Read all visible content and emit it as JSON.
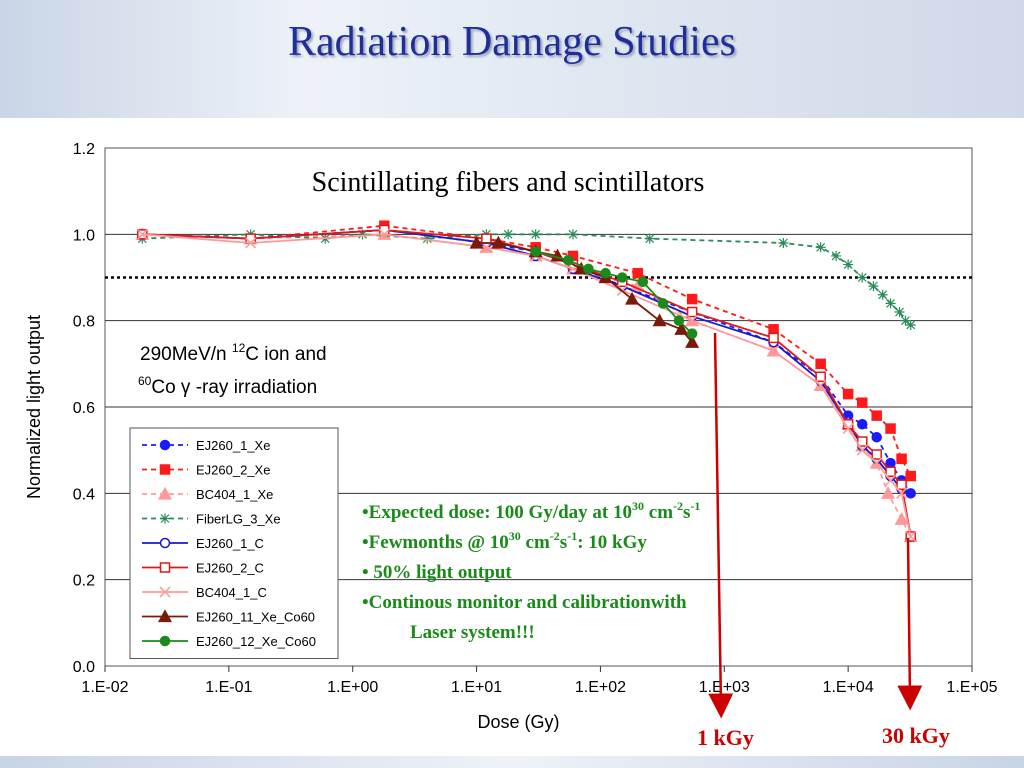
{
  "slide": {
    "title": "Radiation Damage Studies"
  },
  "annotations": {
    "arrow_1": "1 kGy",
    "arrow_2": "30 kGy",
    "bullets": [
      {
        "text": "•Expected dose: 100 Gy/day at 10",
        "sup1": "30",
        "mid": " cm",
        "sup2": "-2",
        "mid2": "s",
        "sup3": "-1"
      },
      {
        "text": "•Fewmonths @ 10",
        "sup1": "30",
        "mid": " cm",
        "sup2": "-2",
        "mid2": "s",
        "sup3": "-1",
        "tail": ": 10 kGy"
      },
      {
        "text": "• 50% light output"
      },
      {
        "text": "•Continous monitor and calibrationwith"
      },
      {
        "text": "Laser system!!!"
      }
    ]
  },
  "colors": {
    "title": "#1f2f9a",
    "bullet_text": "#1a8a1a",
    "arrow": "#cc0000"
  },
  "chart_data": {
    "type": "line",
    "title": "Scintillating fibers and scintillators",
    "note_line1": "290MeV/n ",
    "note_sup1": "12",
    "note_line1b": "C ion and",
    "note_sup2": "60",
    "note_line2": "Co  γ -ray irradiation",
    "xlabel": "Dose (Gy)",
    "ylabel": "Normalized light output",
    "xscale": "log",
    "xlim": [
      0.01,
      100000
    ],
    "ylim": [
      0,
      1.2
    ],
    "xticks": [
      "1.E-02",
      "1.E-01",
      "1.E+00",
      "1.E+01",
      "1.E+02",
      "1.E+03",
      "1.E+04",
      "1.E+05"
    ],
    "yticks": [
      "0.0",
      "0.2",
      "0.4",
      "0.6",
      "0.8",
      "1.0",
      "1.2"
    ],
    "grid": true,
    "reference_line": 0.9,
    "legend_position": "left",
    "series": [
      {
        "name": "EJ260_1_Xe",
        "color": "#1a1aff",
        "dash": "dashed",
        "marker": "circle",
        "fill": true,
        "points": [
          [
            0.02,
            1.0
          ],
          [
            0.15,
            0.99
          ],
          [
            1.8,
            1.01
          ],
          [
            12,
            0.98
          ],
          [
            30,
            0.96
          ],
          [
            60,
            0.93
          ],
          [
            150,
            0.88
          ],
          [
            550,
            0.82
          ],
          [
            2500,
            0.75
          ],
          [
            6000,
            0.67
          ],
          [
            10000,
            0.58
          ],
          [
            13000,
            0.56
          ],
          [
            17000,
            0.53
          ],
          [
            22000,
            0.47
          ],
          [
            27000,
            0.43
          ],
          [
            32000,
            0.4
          ]
        ]
      },
      {
        "name": "EJ260_2_Xe",
        "color": "#ff1a1a",
        "dash": "dashed",
        "marker": "square",
        "fill": true,
        "points": [
          [
            0.02,
            1.0
          ],
          [
            0.15,
            0.99
          ],
          [
            1.8,
            1.02
          ],
          [
            12,
            0.99
          ],
          [
            30,
            0.97
          ],
          [
            60,
            0.95
          ],
          [
            200,
            0.91
          ],
          [
            550,
            0.85
          ],
          [
            2500,
            0.78
          ],
          [
            6000,
            0.7
          ],
          [
            10000,
            0.63
          ],
          [
            13000,
            0.61
          ],
          [
            17000,
            0.58
          ],
          [
            22000,
            0.55
          ],
          [
            27000,
            0.48
          ],
          [
            32000,
            0.44
          ]
        ]
      },
      {
        "name": "BC404_1_Xe",
        "color": "#ff9999",
        "dash": "dashed",
        "marker": "triangle",
        "fill": true,
        "points": [
          [
            0.02,
            1.0
          ],
          [
            0.15,
            0.99
          ],
          [
            1.8,
            1.0
          ],
          [
            12,
            0.97
          ],
          [
            30,
            0.95
          ],
          [
            60,
            0.92
          ],
          [
            200,
            0.88
          ],
          [
            550,
            0.8
          ],
          [
            2500,
            0.73
          ],
          [
            6000,
            0.65
          ],
          [
            10000,
            0.56
          ],
          [
            13000,
            0.51
          ],
          [
            17000,
            0.47
          ],
          [
            21000,
            0.4
          ],
          [
            27000,
            0.34
          ],
          [
            32000,
            0.3
          ]
        ]
      },
      {
        "name": "FiberLG_3_Xe",
        "color": "#2a8a5a",
        "dash": "dashed",
        "marker": "star",
        "fill": false,
        "points": [
          [
            0.02,
            0.99
          ],
          [
            0.15,
            1.0
          ],
          [
            0.6,
            0.99
          ],
          [
            1.2,
            1.0
          ],
          [
            4,
            0.99
          ],
          [
            12,
            1.0
          ],
          [
            18,
            1.0
          ],
          [
            30,
            1.0
          ],
          [
            60,
            1.0
          ],
          [
            250,
            0.99
          ],
          [
            3000,
            0.98
          ],
          [
            6000,
            0.97
          ],
          [
            8000,
            0.95
          ],
          [
            10000,
            0.93
          ],
          [
            13000,
            0.9
          ],
          [
            16000,
            0.88
          ],
          [
            19000,
            0.86
          ],
          [
            22000,
            0.84
          ],
          [
            26000,
            0.82
          ],
          [
            29000,
            0.8
          ],
          [
            32000,
            0.79
          ]
        ]
      },
      {
        "name": "EJ260_1_C",
        "color": "#1a1acc",
        "dash": "solid",
        "marker": "circle",
        "fill": false,
        "points": [
          [
            0.02,
            1.0
          ],
          [
            0.15,
            0.99
          ],
          [
            1.8,
            1.01
          ],
          [
            12,
            0.98
          ],
          [
            30,
            0.95
          ],
          [
            60,
            0.92
          ],
          [
            150,
            0.88
          ],
          [
            550,
            0.81
          ],
          [
            2500,
            0.75
          ],
          [
            6000,
            0.66
          ],
          [
            10000,
            0.56
          ],
          [
            13000,
            0.51
          ],
          [
            17000,
            0.48
          ],
          [
            22000,
            0.44
          ],
          [
            27000,
            0.41
          ],
          [
            32000,
            0.3
          ]
        ]
      },
      {
        "name": "EJ260_2_C",
        "color": "#dd1a1a",
        "dash": "solid",
        "marker": "square",
        "fill": false,
        "points": [
          [
            0.02,
            1.0
          ],
          [
            0.15,
            0.99
          ],
          [
            1.8,
            1.01
          ],
          [
            12,
            0.99
          ],
          [
            30,
            0.96
          ],
          [
            60,
            0.93
          ],
          [
            150,
            0.89
          ],
          [
            550,
            0.82
          ],
          [
            2500,
            0.76
          ],
          [
            6000,
            0.67
          ],
          [
            10000,
            0.56
          ],
          [
            13000,
            0.52
          ],
          [
            17000,
            0.49
          ],
          [
            22000,
            0.45
          ],
          [
            27000,
            0.42
          ],
          [
            32000,
            0.3
          ]
        ]
      },
      {
        "name": "BC404_1_C",
        "color": "#ff9999",
        "dash": "solid",
        "marker": "x",
        "fill": false,
        "points": [
          [
            0.02,
            1.0
          ],
          [
            0.15,
            0.98
          ],
          [
            1.8,
            1.0
          ],
          [
            12,
            0.97
          ],
          [
            30,
            0.95
          ],
          [
            60,
            0.92
          ],
          [
            150,
            0.87
          ],
          [
            550,
            0.8
          ],
          [
            2500,
            0.73
          ],
          [
            6000,
            0.65
          ],
          [
            10000,
            0.55
          ],
          [
            13000,
            0.5
          ],
          [
            17000,
            0.47
          ],
          [
            22000,
            0.43
          ],
          [
            27000,
            0.4
          ],
          [
            32000,
            0.3
          ]
        ]
      },
      {
        "name": "EJ260_11_Xe_Co60",
        "color": "#7a1a0a",
        "dash": "solid",
        "marker": "triangle",
        "fill": true,
        "points": [
          [
            10,
            0.98
          ],
          [
            15,
            0.98
          ],
          [
            30,
            0.96
          ],
          [
            45,
            0.95
          ],
          [
            70,
            0.92
          ],
          [
            110,
            0.9
          ],
          [
            180,
            0.85
          ],
          [
            300,
            0.8
          ],
          [
            450,
            0.78
          ],
          [
            550,
            0.75
          ]
        ]
      },
      {
        "name": "EJ260_12_Xe_Co60",
        "color": "#1a8a1a",
        "dash": "solid",
        "marker": "circle",
        "fill": true,
        "points": [
          [
            30,
            0.96
          ],
          [
            55,
            0.94
          ],
          [
            80,
            0.92
          ],
          [
            110,
            0.91
          ],
          [
            150,
            0.9
          ],
          [
            220,
            0.89
          ],
          [
            320,
            0.84
          ],
          [
            430,
            0.8
          ],
          [
            550,
            0.77
          ]
        ]
      }
    ]
  }
}
